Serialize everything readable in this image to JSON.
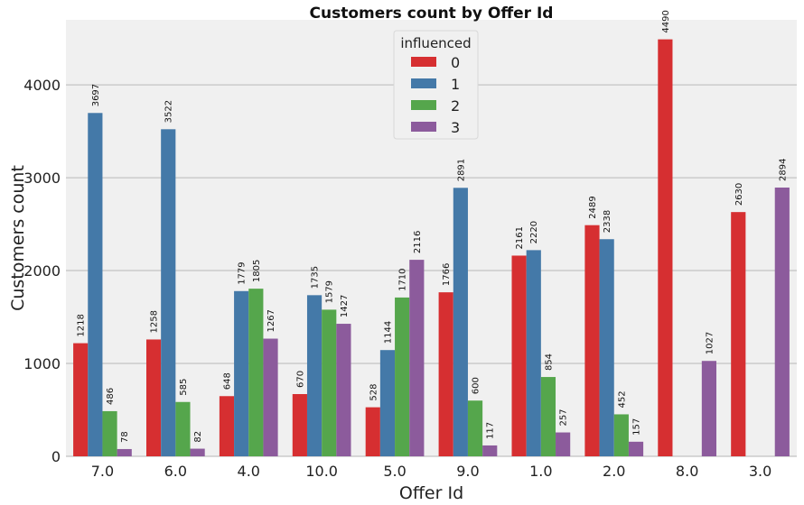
{
  "chart_data": {
    "type": "bar",
    "title": "Customers count by Offer Id",
    "xlabel": "Offer Id",
    "ylabel": "Customers count",
    "categories": [
      "7.0",
      "6.0",
      "4.0",
      "10.0",
      "5.0",
      "9.0",
      "1.0",
      "2.0",
      "8.0",
      "3.0"
    ],
    "ylim": [
      0,
      4700
    ],
    "yticks": [
      0,
      1000,
      2000,
      3000,
      4000
    ],
    "grid": true,
    "legend": {
      "title": "influenced",
      "placement": "top-center"
    },
    "series": [
      {
        "name": "0",
        "color": "#d62f31",
        "values": [
          1218,
          1258,
          648,
          670,
          528,
          1766,
          2161,
          2489,
          4490,
          2630
        ]
      },
      {
        "name": "1",
        "color": "#4479a8",
        "values": [
          3697,
          3522,
          1779,
          1735,
          1144,
          2891,
          2220,
          2338,
          null,
          null
        ]
      },
      {
        "name": "2",
        "color": "#55a64c",
        "values": [
          486,
          585,
          1805,
          1579,
          1710,
          600,
          854,
          452,
          null,
          null
        ]
      },
      {
        "name": "3",
        "color": "#8c5b9c",
        "values": [
          78,
          82,
          1267,
          1427,
          2116,
          117,
          257,
          157,
          1027,
          2894
        ]
      }
    ]
  }
}
